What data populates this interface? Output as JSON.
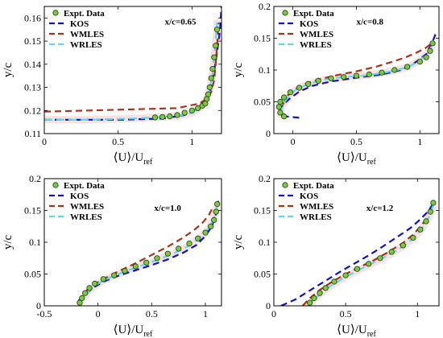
{
  "colors": {
    "expt_fill": "#7ac943",
    "expt_edge": "#1f3a0f",
    "kos": "#1010d0",
    "wmles": "#a83218",
    "wrles": "#5ad8f0",
    "wrles_band": "#f2c8c8"
  },
  "chart_data": [
    {
      "type": "line",
      "annotation": "x/c=0.65",
      "xlabel": "⟨U⟩/U",
      "xlabel_sub": "ref",
      "ylabel": "y/c",
      "xlim": [
        0,
        1.2
      ],
      "ylim": [
        0.11,
        0.165
      ],
      "xticks": [
        0,
        0.5,
        1
      ],
      "xtick_labels": [
        "0",
        "0.5",
        "1"
      ],
      "yticks": [
        0.11,
        0.12,
        0.13,
        0.14,
        0.15,
        0.16
      ],
      "ytick_labels": [
        "0.11",
        "0.12",
        "0.13",
        "0.14",
        "0.15",
        "0.16"
      ],
      "legend": [
        "Expt. Data",
        "KOS",
        "WMLES",
        "WRLES"
      ],
      "series": [
        {
          "name": "Expt. Data",
          "kind": "markers",
          "x": [
            0.75,
            0.8,
            0.85,
            0.9,
            0.95,
            1.0,
            1.04,
            1.07,
            1.09,
            1.1,
            1.11,
            1.12,
            1.13,
            1.14,
            1.15,
            1.16,
            1.17
          ],
          "y": [
            0.117,
            0.1172,
            0.1175,
            0.118,
            0.119,
            0.12,
            0.121,
            0.122,
            0.123,
            0.125,
            0.127,
            0.13,
            0.134,
            0.138,
            0.143,
            0.148,
            0.155
          ]
        },
        {
          "name": "KOS",
          "kind": "dashed",
          "x": [
            0,
            0.2,
            0.5,
            0.8,
            0.95,
            1.05,
            1.1,
            1.13,
            1.15,
            1.17,
            1.19,
            1.2
          ],
          "y": [
            0.116,
            0.116,
            0.116,
            0.1165,
            0.118,
            0.121,
            0.124,
            0.13,
            0.137,
            0.145,
            0.155,
            0.165
          ]
        },
        {
          "name": "WMLES",
          "kind": "dashed",
          "x": [
            0,
            0.3,
            0.6,
            0.9,
            1.05,
            1.1,
            1.13,
            1.15,
            1.16,
            1.17,
            1.18
          ],
          "y": [
            0.1195,
            0.12,
            0.1205,
            0.121,
            0.123,
            0.125,
            0.128,
            0.133,
            0.14,
            0.148,
            0.158
          ]
        },
        {
          "name": "WRLES",
          "kind": "dashed",
          "x": [
            0,
            0.3,
            0.6,
            0.9,
            1.0,
            1.05,
            1.09,
            1.12,
            1.14,
            1.15,
            1.16,
            1.17
          ],
          "y": [
            0.116,
            0.116,
            0.1165,
            0.1175,
            0.119,
            0.121,
            0.124,
            0.129,
            0.136,
            0.143,
            0.15,
            0.158
          ]
        }
      ]
    },
    {
      "type": "line",
      "annotation": "x/c=0.8",
      "xlabel": "⟨U⟩/U",
      "xlabel_sub": "ref",
      "ylabel": "y/c",
      "xlim": [
        -0.15,
        1.15
      ],
      "ylim": [
        0,
        0.2
      ],
      "xticks": [
        0,
        0.5,
        1
      ],
      "xtick_labels": [
        "0",
        "0.5",
        "1"
      ],
      "yticks": [
        0,
        0.05,
        0.1,
        0.15,
        0.2
      ],
      "ytick_labels": [
        "0",
        "0.05",
        "0.1",
        "0.15",
        "0.2"
      ],
      "legend": [
        "Expt. Data",
        "KOS",
        "WMLES",
        "WRLES"
      ],
      "series": [
        {
          "name": "Expt. Data",
          "kind": "markers",
          "x": [
            -0.07,
            -0.1,
            -0.11,
            -0.1,
            -0.07,
            -0.02,
            0.05,
            0.12,
            0.2,
            0.3,
            0.4,
            0.5,
            0.6,
            0.7,
            0.8,
            0.9,
            1.0,
            1.05,
            1.08,
            1.1
          ],
          "y": [
            0.027,
            0.033,
            0.042,
            0.05,
            0.057,
            0.065,
            0.072,
            0.078,
            0.083,
            0.087,
            0.089,
            0.091,
            0.093,
            0.096,
            0.1,
            0.105,
            0.113,
            0.12,
            0.13,
            0.142
          ]
        },
        {
          "name": "KOS",
          "kind": "dashed",
          "x": [
            0.05,
            -0.05,
            -0.1,
            -0.08,
            -0.02,
            0.05,
            0.15,
            0.3,
            0.5,
            0.7,
            0.85,
            0.95,
            1.05,
            1.1,
            1.13
          ],
          "y": [
            0.025,
            0.027,
            0.035,
            0.045,
            0.056,
            0.066,
            0.075,
            0.082,
            0.088,
            0.093,
            0.1,
            0.11,
            0.125,
            0.145,
            0.16
          ]
        },
        {
          "name": "WMLES",
          "kind": "dashed",
          "x": [
            -0.08,
            -0.04,
            0.02,
            0.1,
            0.2,
            0.35,
            0.5,
            0.65,
            0.8,
            0.9,
            0.98,
            1.04,
            1.08
          ],
          "y": [
            0.045,
            0.06,
            0.07,
            0.078,
            0.085,
            0.092,
            0.098,
            0.105,
            0.114,
            0.121,
            0.128,
            0.134,
            0.14
          ]
        },
        {
          "name": "WRLES",
          "kind": "dashed",
          "x": [
            -0.1,
            -0.08,
            -0.03,
            0.03,
            0.12,
            0.25,
            0.4,
            0.55,
            0.7,
            0.82,
            0.92,
            1.0,
            1.06,
            1.1
          ],
          "y": [
            0.03,
            0.045,
            0.06,
            0.07,
            0.078,
            0.085,
            0.089,
            0.091,
            0.095,
            0.1,
            0.106,
            0.115,
            0.126,
            0.14
          ]
        }
      ]
    },
    {
      "type": "line",
      "annotation": "x/c=1.0",
      "xlabel": "⟨U⟩/U",
      "xlabel_sub": "ref",
      "ylabel": "y/c",
      "xlim": [
        -0.5,
        1.15
      ],
      "ylim": [
        0,
        0.2
      ],
      "xticks": [
        -0.5,
        0,
        0.5,
        1
      ],
      "xtick_labels": [
        "-0.5",
        "0",
        "0.5",
        "1"
      ],
      "yticks": [
        0,
        0.05,
        0.1,
        0.15,
        0.2
      ],
      "ytick_labels": [
        "0",
        "0.05",
        "0.1",
        "0.15",
        "0.2"
      ],
      "legend": [
        "Expt. Data",
        "KOS",
        "WMLES",
        "WRLES"
      ],
      "series": [
        {
          "name": "Expt. Data",
          "kind": "markers",
          "x": [
            -0.17,
            -0.15,
            -0.12,
            -0.08,
            -0.03,
            0.05,
            0.15,
            0.25,
            0.35,
            0.45,
            0.55,
            0.65,
            0.75,
            0.85,
            0.93,
            1.0,
            1.05,
            1.08,
            1.1,
            1.11
          ],
          "y": [
            0.005,
            0.012,
            0.02,
            0.028,
            0.035,
            0.042,
            0.048,
            0.055,
            0.062,
            0.068,
            0.075,
            0.082,
            0.09,
            0.098,
            0.106,
            0.115,
            0.125,
            0.135,
            0.148,
            0.16
          ]
        },
        {
          "name": "KOS",
          "kind": "dashed",
          "x": [
            -0.18,
            -0.1,
            -0.05,
            0.05,
            0.2,
            0.35,
            0.5,
            0.65,
            0.8,
            0.92,
            1.0,
            1.06,
            1.1,
            1.12
          ],
          "y": [
            0.008,
            0.02,
            0.028,
            0.038,
            0.048,
            0.056,
            0.064,
            0.073,
            0.084,
            0.096,
            0.11,
            0.125,
            0.145,
            0.165
          ]
        },
        {
          "name": "WMLES",
          "kind": "dashed",
          "x": [
            -0.12,
            -0.05,
            0.05,
            0.2,
            0.35,
            0.5,
            0.65,
            0.8,
            0.9,
            0.97,
            1.03,
            1.07
          ],
          "y": [
            0.022,
            0.032,
            0.042,
            0.055,
            0.067,
            0.08,
            0.093,
            0.108,
            0.12,
            0.13,
            0.142,
            0.155
          ]
        },
        {
          "name": "WRLES",
          "kind": "dashed",
          "x": [
            -0.17,
            -0.13,
            -0.08,
            0.0,
            0.12,
            0.25,
            0.4,
            0.55,
            0.7,
            0.82,
            0.92,
            1.0,
            1.05,
            1.09,
            1.11
          ],
          "y": [
            0.005,
            0.014,
            0.024,
            0.035,
            0.045,
            0.054,
            0.063,
            0.072,
            0.082,
            0.092,
            0.103,
            0.115,
            0.127,
            0.142,
            0.16
          ]
        }
      ]
    },
    {
      "type": "line",
      "annotation": "x/c=1.2",
      "xlabel": "⟨U⟩/U",
      "xlabel_sub": "ref",
      "ylabel": "y/c",
      "xlim": [
        0,
        1.15
      ],
      "ylim": [
        0,
        0.2
      ],
      "xticks": [
        0,
        0.5,
        1
      ],
      "xtick_labels": [
        "0",
        "0.5",
        "1"
      ],
      "yticks": [
        0,
        0.05,
        0.1,
        0.15,
        0.2
      ],
      "ytick_labels": [
        "0",
        "0.05",
        "0.1",
        "0.15",
        "0.2"
      ],
      "legend": [
        "Expt. Data",
        "KOS",
        "WMLES",
        "WRLES"
      ],
      "series": [
        {
          "name": "Expt. Data",
          "kind": "markers",
          "x": [
            0.25,
            0.28,
            0.32,
            0.36,
            0.42,
            0.5,
            0.58,
            0.66,
            0.74,
            0.82,
            0.9,
            0.97,
            1.02,
            1.06,
            1.09,
            1.11
          ],
          "y": [
            0.005,
            0.012,
            0.02,
            0.028,
            0.038,
            0.048,
            0.058,
            0.066,
            0.075,
            0.085,
            0.095,
            0.107,
            0.12,
            0.133,
            0.148,
            0.162
          ]
        },
        {
          "name": "KOS",
          "kind": "dashed",
          "x": [
            0.05,
            0.15,
            0.25,
            0.35,
            0.45,
            0.55,
            0.65,
            0.75,
            0.85,
            0.95,
            1.02,
            1.08,
            1.12
          ],
          "y": [
            0.0,
            0.01,
            0.024,
            0.038,
            0.052,
            0.065,
            0.078,
            0.092,
            0.107,
            0.122,
            0.136,
            0.15,
            0.165
          ]
        },
        {
          "name": "WMLES",
          "kind": "dashed",
          "x": [
            0.2,
            0.25,
            0.32,
            0.4,
            0.5,
            0.6,
            0.7,
            0.8,
            0.9,
            0.97,
            1.03,
            1.08
          ],
          "y": [
            0.0,
            0.012,
            0.025,
            0.037,
            0.05,
            0.061,
            0.072,
            0.085,
            0.099,
            0.112,
            0.127,
            0.142
          ]
        },
        {
          "name": "WRLES",
          "kind": "dashed",
          "x": [
            0.24,
            0.28,
            0.33,
            0.4,
            0.48,
            0.57,
            0.66,
            0.75,
            0.84,
            0.92,
            0.99,
            1.04,
            1.08,
            1.11
          ],
          "y": [
            0.0,
            0.01,
            0.02,
            0.032,
            0.043,
            0.054,
            0.064,
            0.074,
            0.085,
            0.097,
            0.11,
            0.124,
            0.14,
            0.158
          ]
        }
      ]
    }
  ]
}
